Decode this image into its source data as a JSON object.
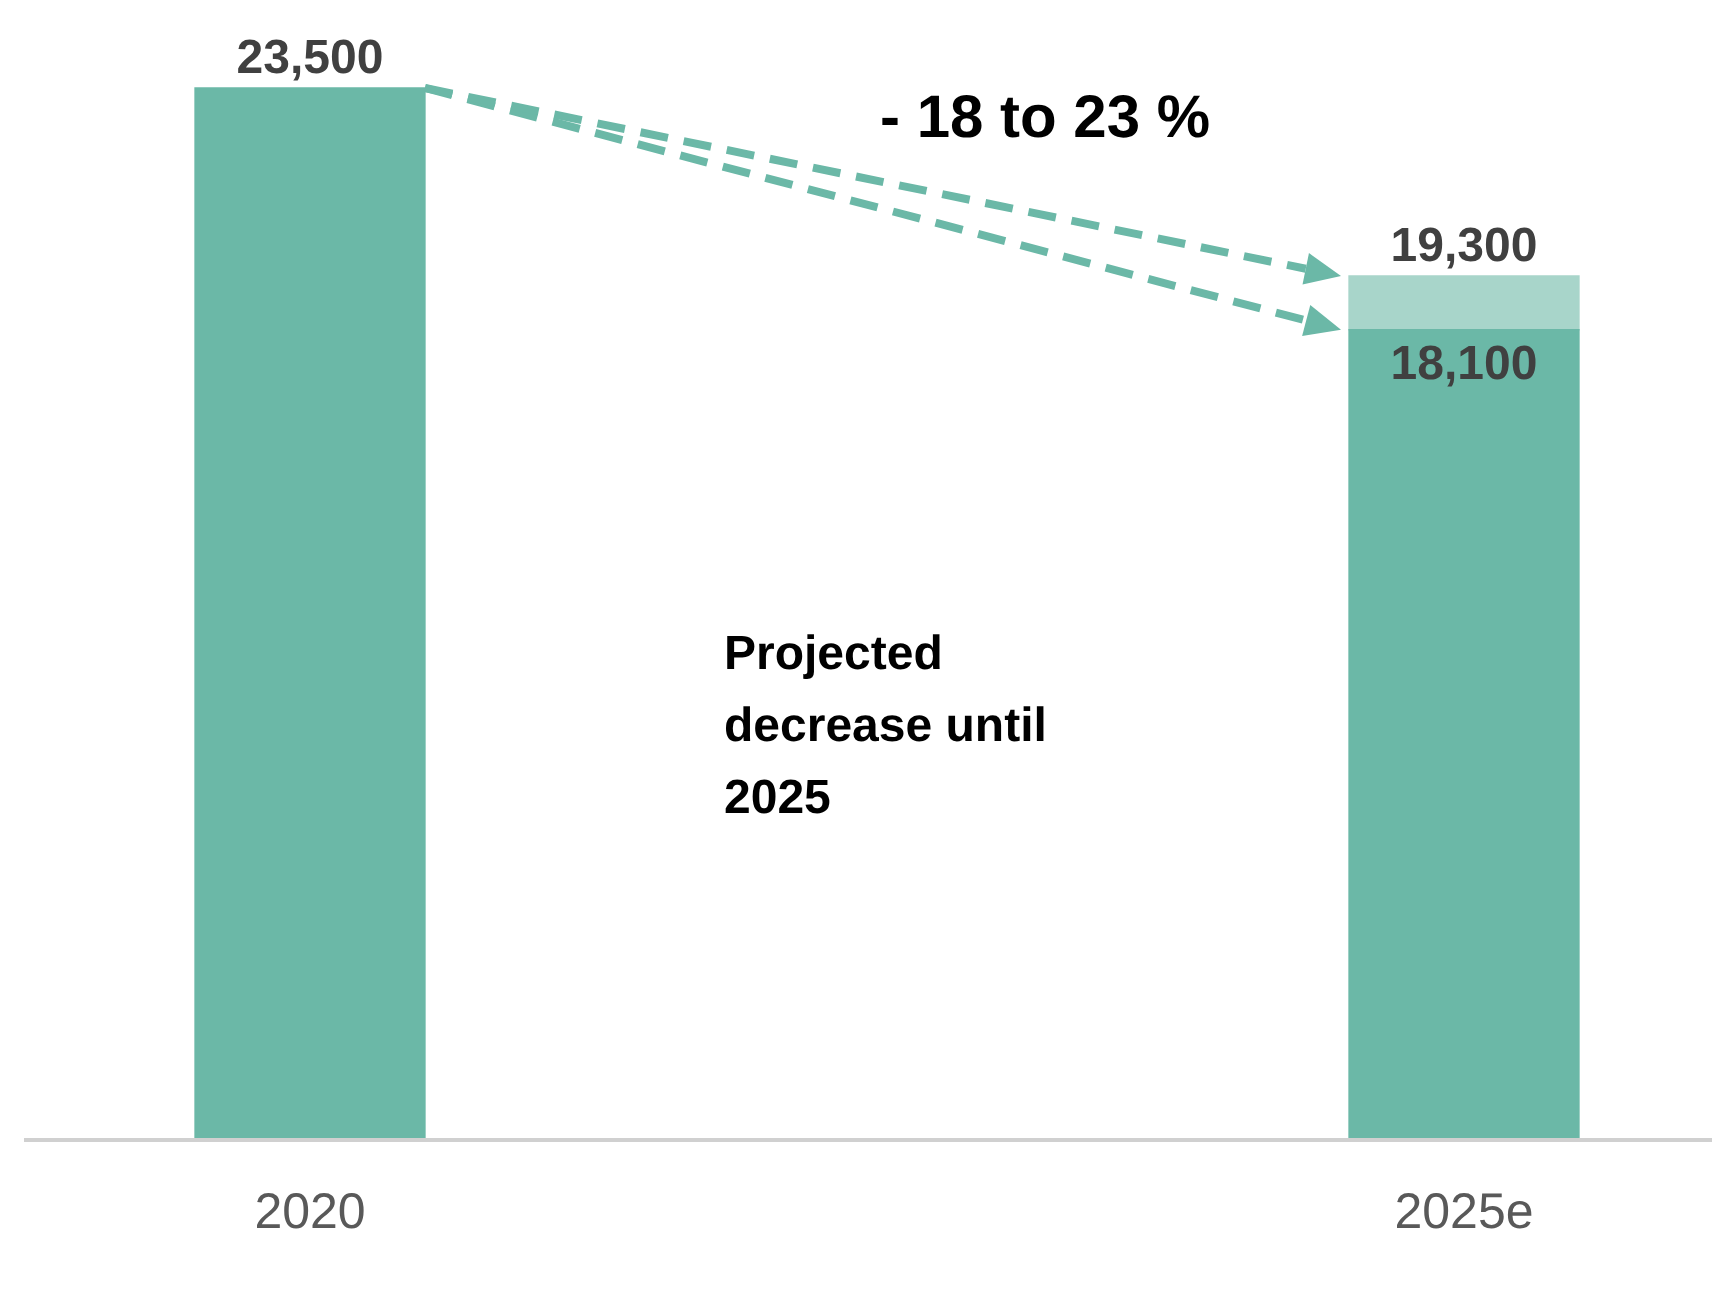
{
  "chart_data": {
    "type": "bar",
    "stacked": true,
    "categories": [
      "2020",
      "2025e"
    ],
    "series": [
      {
        "color": "#6bb8a7",
        "values": [
          23500,
          18100
        ],
        "value_labels": [
          null,
          "18,100"
        ]
      },
      {
        "color": "#a8d5ca",
        "values": [
          null,
          1200
        ]
      }
    ],
    "totals": [
      "23,500",
      "19,300"
    ],
    "annotations": [
      "- 18 to 23 %",
      "Projected decrease until 2025"
    ],
    "legend": false,
    "grid": false
  }
}
